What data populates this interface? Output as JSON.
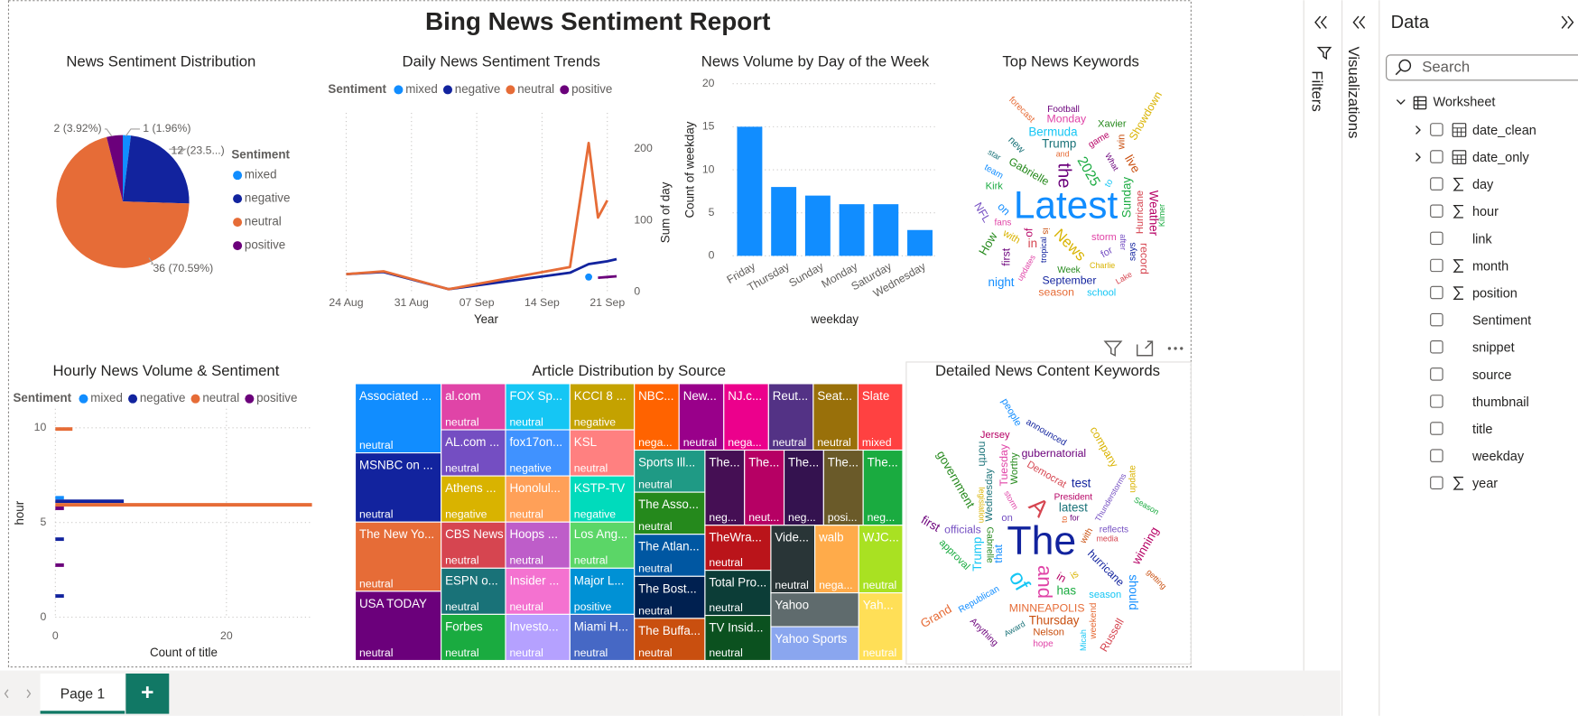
{
  "report": {
    "title": "Bing News Sentiment Report"
  },
  "chart_data": [
    {
      "type": "pie",
      "title": "News Sentiment Distribution",
      "legend_title": "Sentiment",
      "legend": "right",
      "categories": [
        "mixed",
        "negative",
        "neutral",
        "positive"
      ],
      "values": [
        1,
        12,
        36,
        2
      ],
      "value_labels": [
        "1 (1.96%)",
        "12 (23.5...)",
        "36 (70.59%)",
        "2 (3.92%)"
      ],
      "colors": [
        "#118DFF",
        "#12239E",
        "#E66C37",
        "#6B007B"
      ]
    },
    {
      "type": "line",
      "title": "Daily News Sentiment Trends",
      "legend_title": "Sentiment",
      "legend": "top",
      "x": [
        "24 Aug",
        "28 Aug",
        "04 Sep",
        "17 Sep",
        "19 Sep",
        "20 Sep",
        "21 Sep",
        "22 Sep"
      ],
      "xlim": [
        "24 Aug",
        "23 Sep"
      ],
      "xticks": [
        "24 Aug",
        "31 Aug",
        "07 Sep",
        "14 Sep",
        "21 Sep"
      ],
      "x_label": "Year",
      "y2_label": "Sum of day",
      "y2lim": [
        0,
        250
      ],
      "y2ticks": [
        0,
        100,
        200
      ],
      "grid": "x",
      "series": [
        {
          "name": "mixed",
          "color": "#118DFF",
          "axis": "y2",
          "values": [
            null,
            null,
            null,
            null,
            21,
            null,
            null,
            null
          ]
        },
        {
          "name": "negative",
          "color": "#12239E",
          "axis": "y2",
          "values": [
            25,
            28,
            4,
            27,
            39,
            41,
            43,
            46
          ]
        },
        {
          "name": "neutral",
          "color": "#E66C37",
          "axis": "y2",
          "values": [
            25,
            29,
            4,
            35,
            208,
            104,
            128,
            null
          ]
        },
        {
          "name": "positive",
          "color": "#6B007B",
          "axis": "y2",
          "values": [
            null,
            null,
            null,
            null,
            null,
            20,
            21,
            22
          ]
        }
      ]
    },
    {
      "type": "bar",
      "title": "News Volume by Day of the Week",
      "categories": [
        "Friday",
        "Thursday",
        "Sunday",
        "Monday",
        "Saturday",
        "Wednesday"
      ],
      "values": [
        15,
        8,
        7,
        6,
        6,
        3
      ],
      "color": "#118DFF",
      "ylim": [
        0,
        20
      ],
      "yticks": [
        0,
        5,
        10,
        15,
        20
      ],
      "x_label": "weekday",
      "y_label": "Count of weekday",
      "grid": true
    },
    {
      "type": "bar",
      "orientation": "horizontal",
      "title": "Hourly News Volume & Sentiment",
      "legend_title": "Sentiment",
      "legend": "top",
      "y": [
        1,
        3,
        4,
        6,
        10
      ],
      "ylim": [
        0,
        11
      ],
      "yticks": [
        0,
        5,
        10
      ],
      "xlim": [
        0,
        30
      ],
      "xticks": [
        0,
        20
      ],
      "x_label": "Count of title",
      "y_label": "hour",
      "grid": true,
      "series": [
        {
          "name": "mixed",
          "color": "#118DFF",
          "values": [
            null,
            null,
            null,
            1,
            null
          ]
        },
        {
          "name": "negative",
          "color": "#12239E",
          "values": [
            1,
            null,
            1,
            8,
            null
          ]
        },
        {
          "name": "neutral",
          "color": "#E66C37",
          "values": [
            null,
            null,
            null,
            30,
            2
          ]
        },
        {
          "name": "positive",
          "color": "#6B007B",
          "values": [
            null,
            1,
            null,
            1,
            null
          ]
        }
      ]
    },
    {
      "type": "treemap",
      "title": "Article Distribution by Source",
      "categories": [
        "Associated ...",
        "MSNBC on ...",
        "The New Yo...",
        "USA TODAY",
        "al.com",
        "AL.com ...",
        "Athens ...",
        "CBS News",
        "ESPN o...",
        "Forbes",
        "FOX Sp...",
        "fox17on...",
        "Honolul...",
        "Hoops ...",
        "Insider ...",
        "Investo...",
        "KCCI 8 ...",
        "KSL",
        "KSTP-TV",
        "Los Ang...",
        "Major L...",
        "Miami H...",
        "NBC...",
        "New...",
        "NJ.c...",
        "Reut...",
        "Seat...",
        "Slate",
        "Sports Ill...",
        "The Asso...",
        "The Atlan...",
        "The Bost...",
        "The Buffa...",
        "The...",
        "The...",
        "The...",
        "The...",
        "The...",
        "TheWra...",
        "Total Pro...",
        "TV Insid...",
        "Vide...",
        "walb",
        "WJC...",
        "Yahoo",
        "Yahoo Sports",
        "Yah..."
      ],
      "values": [
        2,
        2,
        2,
        2,
        1,
        1,
        1,
        1,
        1,
        1,
        1,
        1,
        1,
        1,
        1,
        1,
        1,
        1,
        1,
        1,
        1,
        1,
        1,
        1,
        1,
        1,
        1,
        1,
        1,
        1,
        1,
        1,
        1,
        1,
        1,
        1,
        1,
        1,
        1,
        1,
        1,
        1,
        1,
        1,
        1,
        1,
        1
      ],
      "labels": [
        "neutral",
        "neutral",
        "neutral",
        "neutral",
        "neutral",
        "neutral",
        "negative",
        "neutral",
        "neutral",
        "neutral",
        "neutral",
        "negative",
        "neutral",
        "neutral",
        "neutral",
        "neutral",
        "negative",
        "neutral",
        "negative",
        "neutral",
        "positive",
        "neutral",
        "nega...",
        "neutral",
        "nega...",
        "neutral",
        "neutral",
        "mixed",
        "neutral",
        "neutral",
        "neutral",
        "neutral",
        "neutral",
        "neg...",
        "neut...",
        "neg...",
        "posi...",
        "neg...",
        "neutral",
        "neutral",
        "neutral",
        "neutral",
        "nega...",
        "neutral",
        null,
        null,
        "neutral"
      ],
      "colors": [
        "#118DFF",
        "#12239E",
        "#E66C37",
        "#6B007B",
        "#E044A7",
        "#744EC2",
        "#D9B300",
        "#D64550",
        "#197278",
        "#1AAB40",
        "#15C6F4",
        "#4092FF",
        "#FFA058",
        "#BE5DC9",
        "#F472D0",
        "#B5A1FF",
        "#C4A200",
        "#FF8080",
        "#00DBBC",
        "#5BD667",
        "#0091D5",
        "#4668C5",
        "#FF6300",
        "#99008A",
        "#EC008C",
        "#533285",
        "#99700A",
        "#FF4141",
        "#1F9A85",
        "#25891C",
        "#0057A2",
        "#002050",
        "#C94F0F",
        "#450F54",
        "#B60064",
        "#34124F",
        "#6A5A29",
        "#1AAB40",
        "#BA141A",
        "#0C3D37",
        "#0B511F",
        "#293537",
        "#FFAB4A",
        "#A9E122",
        "#5F6B6D",
        "#8AA6EF",
        "#FFDF57"
      ]
    }
  ],
  "word_clouds": [
    {
      "title": "Top News Keywords",
      "words": [
        "Latest",
        "the",
        "News",
        "2025",
        "Gabrielle",
        "tropical",
        "storm",
        "in",
        "to",
        "of",
        "and",
        "for",
        "Trump",
        "is",
        "on",
        "What",
        "with",
        "Sunday",
        "Week",
        "September",
        "updates",
        "Hurricane",
        "Bermuda",
        "game",
        "season",
        "after",
        "new",
        "live",
        "team",
        "first",
        "Charlie",
        "Kirk",
        "How",
        "says",
        "Monday",
        "Lake",
        "school",
        "Weather",
        "forecast",
        "NFL",
        "star",
        "win",
        "night",
        "Football",
        "Showdown",
        "Kilmer",
        "Xavier",
        "Georgia",
        "fans",
        "record"
      ]
    },
    {
      "title": "Detailed News Content Keywords",
      "words": [
        "The",
        "and",
        "A",
        "of",
        "in",
        "to",
        "on",
        "latest",
        "with",
        "that",
        "for",
        "is",
        "has",
        "Gabrielle",
        "hurricane",
        "storm",
        "Democrat",
        "Trump",
        "President",
        "MINNEAPOLIS",
        "Thunderstorms",
        "Wednesday",
        "Thursday",
        "Republican",
        "gubernatorial",
        "legislation",
        "approval",
        "government",
        "announced",
        "Tuesday",
        "media",
        "season",
        "winning",
        "weekend",
        "officials",
        "Award",
        "Nelson",
        "should",
        "Anything",
        "company",
        "Season",
        "Worthy",
        "test",
        "hope",
        "Russell",
        "Micah",
        "Jersey",
        "Grand",
        "reflects",
        "north",
        "getting",
        "people",
        "first",
        "update"
      ]
    }
  ],
  "panes": {
    "filters": "Filters",
    "visualizations": "Visualizations",
    "data": {
      "title": "Data",
      "search_placeholder": "Search",
      "table": "Worksheet",
      "fields": [
        {
          "name": "date_clean",
          "kind": "table",
          "expandable": true
        },
        {
          "name": "date_only",
          "kind": "table",
          "expandable": true
        },
        {
          "name": "day",
          "kind": "sigma",
          "expandable": false
        },
        {
          "name": "hour",
          "kind": "sigma",
          "expandable": false
        },
        {
          "name": "link",
          "kind": "text",
          "expandable": false
        },
        {
          "name": "month",
          "kind": "sigma",
          "expandable": false
        },
        {
          "name": "position",
          "kind": "sigma",
          "expandable": false
        },
        {
          "name": "Sentiment",
          "kind": "text",
          "expandable": false
        },
        {
          "name": "snippet",
          "kind": "text",
          "expandable": false
        },
        {
          "name": "source",
          "kind": "text",
          "expandable": false
        },
        {
          "name": "thumbnail",
          "kind": "text",
          "expandable": false
        },
        {
          "name": "title",
          "kind": "text",
          "expandable": false
        },
        {
          "name": "weekday",
          "kind": "text",
          "expandable": false
        },
        {
          "name": "year",
          "kind": "sigma",
          "expandable": false
        }
      ]
    }
  },
  "tabs": {
    "pages": [
      "Page 1"
    ],
    "add": "+"
  }
}
